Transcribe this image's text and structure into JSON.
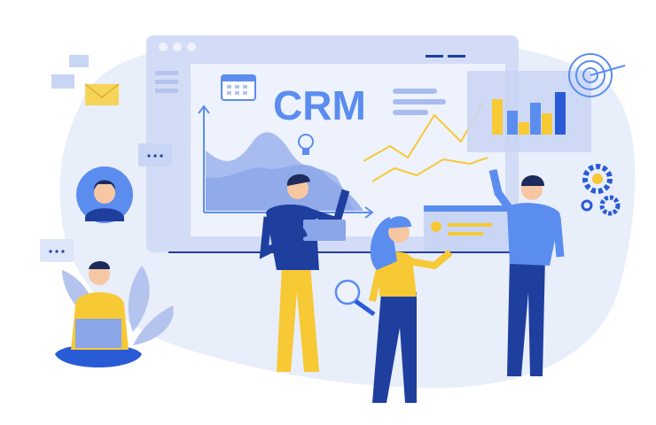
{
  "screen": {
    "title": "CRM"
  },
  "colors": {
    "background": "#ffffff",
    "blob": "#e9eefb",
    "window": "#d3dcf6",
    "panel": "#eef2fd",
    "accent_blue": "#5b8def",
    "dark_blue": "#1f3f9e",
    "yellow": "#f6c935",
    "skin": "#f7c6a3",
    "hair": "#1d2a5c"
  },
  "icons": [
    "calendar-icon",
    "lightbulb-icon",
    "target-icon",
    "gear-icon",
    "envelope-icon",
    "chat-bubble-icon",
    "magnifier-icon",
    "laptop-icon"
  ]
}
